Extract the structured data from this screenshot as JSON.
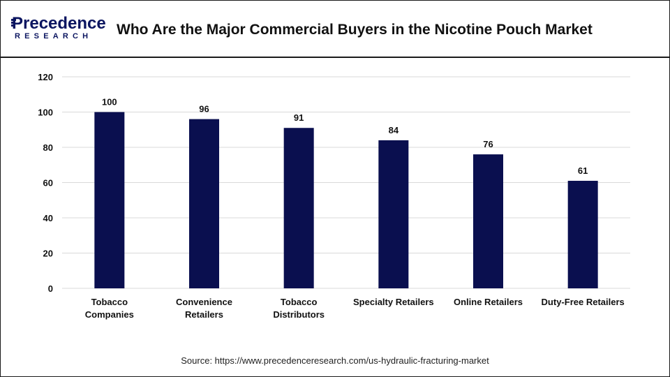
{
  "header": {
    "logo_top": "Precedence",
    "logo_bottom": "RESEARCH",
    "title": "Who Are the Major Commercial Buyers in the Nicotine Pouch Market"
  },
  "colors": {
    "bar": "#0a0f4f",
    "grid": "#d9d9d9",
    "brand": "#0b1560"
  },
  "chart_data": {
    "type": "bar",
    "categories": [
      [
        "Tobacco",
        "Companies"
      ],
      [
        "Convenience",
        "Retailers"
      ],
      [
        "Tobacco",
        "Distributors"
      ],
      [
        "Specialty Retailers"
      ],
      [
        "Online Retailers"
      ],
      [
        "Duty-Free Retailers"
      ]
    ],
    "values": [
      100,
      96,
      91,
      84,
      76,
      61
    ],
    "data_labels": [
      "100",
      "96",
      "91",
      "84",
      "76",
      "61"
    ],
    "y_ticks": [
      0,
      20,
      40,
      60,
      80,
      100,
      120
    ],
    "ylim": [
      0,
      120
    ],
    "grid": true,
    "legend": "none",
    "title": "",
    "xlabel": "",
    "ylabel": ""
  },
  "footer": {
    "source": "Source: https://www.precedenceresearch.com/us-hydraulic-fracturing-market"
  }
}
